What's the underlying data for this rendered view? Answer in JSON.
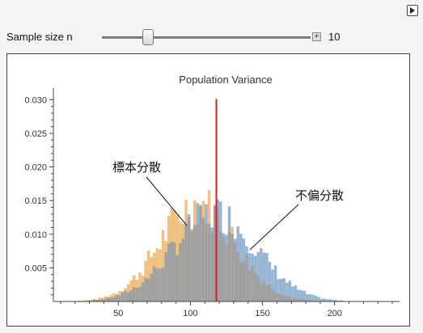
{
  "controls": {
    "label": "Sample size n",
    "value": "10",
    "slider_fraction": 0.2
  },
  "chart_data": {
    "type": "histogram",
    "title": "Population Variance",
    "xlabel": "",
    "ylabel": "",
    "xlim": [
      5,
      245
    ],
    "ylim": [
      0,
      0.031
    ],
    "x_ticks": [
      "50",
      "100",
      "150",
      "200"
    ],
    "y_ticks": [
      "0.005",
      "0.010",
      "0.015",
      "0.020",
      "0.025",
      "0.030"
    ],
    "bin_width": 2,
    "vertical_line_x": 118,
    "colors": {
      "sample_variance": "#f0c080",
      "unbiased_variance": "#98b4d4",
      "overlap": "#a0a0a0",
      "vline": "#d02020"
    },
    "annotations": [
      {
        "text": "標本分散",
        "series": "sample_variance"
      },
      {
        "text": "不偏分散",
        "series": "unbiased_variance"
      }
    ],
    "series": [
      {
        "key": "sample_variance",
        "center": 105,
        "sd": 26,
        "peak": 0.0145
      },
      {
        "key": "unbiased_variance",
        "center": 117,
        "sd": 29,
        "peak": 0.013
      }
    ]
  }
}
